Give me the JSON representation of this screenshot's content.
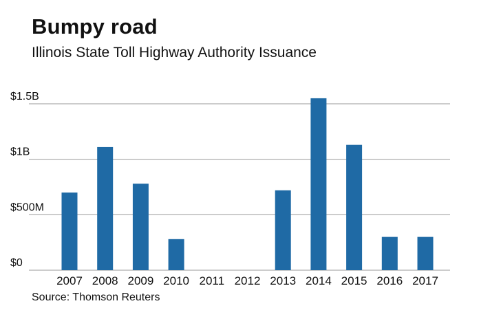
{
  "title": "Bumpy road",
  "subtitle": "Illinois State Toll Highway Authority Issuance",
  "source": "Source: Thomson Reuters",
  "colors": {
    "bar": "#1f6aa5",
    "grid": "#999999",
    "text": "#111111"
  },
  "chart_data": {
    "type": "bar",
    "title": "Bumpy road",
    "subtitle": "Illinois State Toll Highway Authority Issuance",
    "xlabel": "",
    "ylabel": "",
    "categories": [
      "2007",
      "2008",
      "2009",
      "2010",
      "2011",
      "2012",
      "2013",
      "2014",
      "2015",
      "2016",
      "2017"
    ],
    "values": [
      700,
      1110,
      780,
      280,
      0,
      0,
      720,
      1550,
      1130,
      300,
      300
    ],
    "value_unit": "millions of dollars",
    "ylim": [
      0,
      1500
    ],
    "yticks": [
      0,
      500,
      1000,
      1500
    ],
    "ytick_labels": [
      "$0",
      "$500M",
      "$1B",
      "$1.5B"
    ],
    "grid": true,
    "legend": "none"
  }
}
